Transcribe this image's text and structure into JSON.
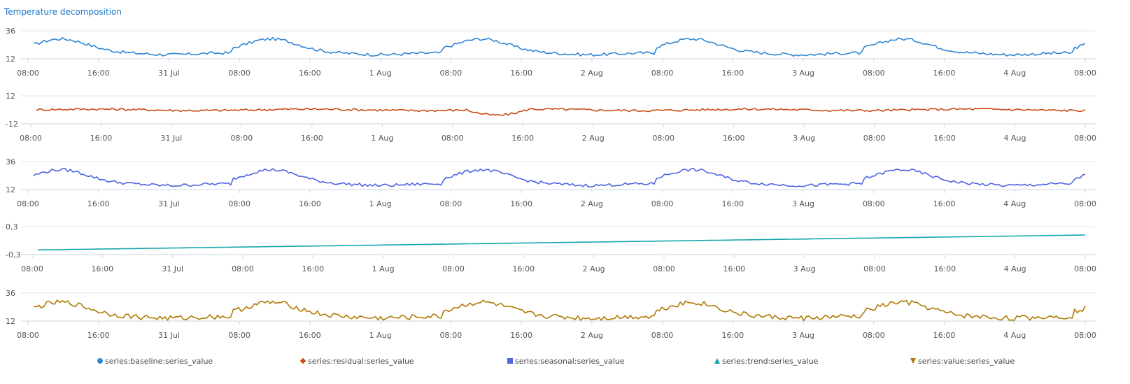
{
  "title": "Temperature decomposition",
  "chart_data": {
    "type": "line",
    "x_ticks": [
      "08:00",
      "16:00",
      "31 Jul",
      "08:00",
      "16:00",
      "1 Aug",
      "08:00",
      "16:00",
      "2 Aug",
      "08:00",
      "16:00",
      "3 Aug",
      "08:00",
      "16:00",
      "4 Aug",
      "08:00"
    ],
    "series": [
      {
        "name": "series:baseline:series_value",
        "color": "#2f86d4",
        "marker": "circle",
        "ylim": [
          12,
          36
        ],
        "y_ticks": [
          "36",
          "12"
        ],
        "shape": "daily",
        "base": 17,
        "amp": 12,
        "noise": 1.3
      },
      {
        "name": "series:residual:series_value",
        "color": "#cc4b12",
        "marker": "diamond",
        "ylim": [
          -12,
          12
        ],
        "y_ticks": [
          "12",
          "-12"
        ],
        "shape": "residual",
        "base": 0,
        "amp": 0,
        "noise": 1.0
      },
      {
        "name": "series:seasonal:series_value",
        "color": "#4d63e3",
        "marker": "square",
        "ylim": [
          12,
          36
        ],
        "y_ticks": [
          "36",
          "12"
        ],
        "shape": "daily",
        "base": 17,
        "amp": 12,
        "noise": 1.3
      },
      {
        "name": "series:trend:series_value",
        "color": "#16a5ad",
        "marker": "triangle-up",
        "ylim": [
          -0.3,
          0.3
        ],
        "y_ticks": [
          "0,3",
          "-0,3"
        ],
        "shape": "linear",
        "start": -0.2,
        "end": 0.12
      },
      {
        "name": "series:value:series_value",
        "color": "#b07a05",
        "marker": "triangle-down",
        "ylim": [
          12,
          36
        ],
        "y_ticks": [
          "36",
          "12"
        ],
        "shape": "daily",
        "base": 16,
        "amp": 12,
        "noise": 2.2
      }
    ]
  }
}
